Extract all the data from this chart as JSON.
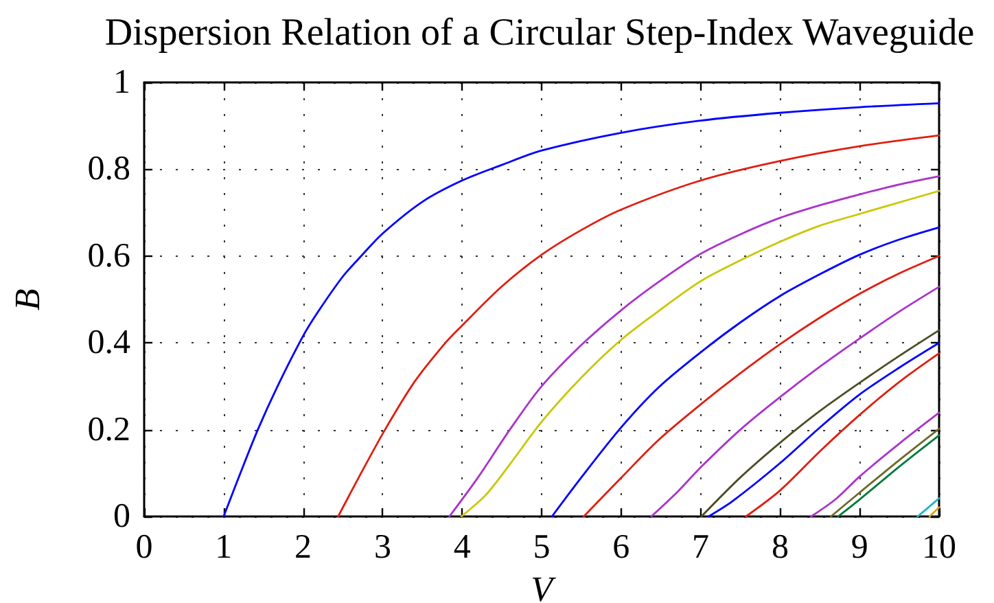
{
  "chart_data": {
    "type": "line",
    "title": "Dispersion Relation of a Circular Step-Index Waveguide",
    "xlabel": "V",
    "ylabel": "B",
    "xlim": [
      0,
      10
    ],
    "xticks": [
      0,
      1,
      2,
      3,
      4,
      5,
      6,
      7,
      8,
      9,
      10
    ],
    "ylim": [
      0,
      1
    ],
    "yticks": [
      0,
      0.2,
      0.4,
      0.6,
      0.8,
      1
    ],
    "grid": true,
    "series": [
      {
        "color": "#0000ff",
        "x": [
          1,
          1.2,
          1.43,
          1.67,
          2,
          2.2,
          2.5,
          2.73,
          3,
          3.5,
          4,
          4.5,
          5,
          6,
          7,
          8,
          9,
          10
        ],
        "values": [
          0,
          0.095,
          0.2,
          0.297,
          0.416,
          0.475,
          0.553,
          0.6,
          0.652,
          0.725,
          0.774,
          0.81,
          0.843,
          0.884,
          0.912,
          0.93,
          0.943,
          0.952
        ]
      },
      {
        "color": "#e01e10",
        "x": [
          2.44,
          2.7,
          3.03,
          3.4,
          3.79,
          4,
          4.5,
          5,
          5.5,
          6,
          7,
          8,
          9,
          10
        ],
        "values": [
          0,
          0.09,
          0.2,
          0.31,
          0.4,
          0.44,
          0.53,
          0.603,
          0.66,
          0.707,
          0.774,
          0.819,
          0.853,
          0.878
        ]
      },
      {
        "color": "#aa33cc",
        "x": [
          3.84,
          4.2,
          4.6,
          5,
          5.5,
          6,
          6.47,
          7,
          7.5,
          8,
          8.5,
          9,
          9.5,
          10
        ],
        "values": [
          0,
          0.09,
          0.2,
          0.3,
          0.395,
          0.475,
          0.54,
          0.605,
          0.65,
          0.688,
          0.717,
          0.742,
          0.765,
          0.784
        ]
      },
      {
        "color": "#c8c800",
        "x": [
          3.99,
          4.3,
          4.6,
          5,
          5.5,
          6,
          6.47,
          7,
          7.5,
          8,
          8.5,
          9,
          9.3,
          10
        ],
        "values": [
          0,
          0.05,
          0.12,
          0.218,
          0.32,
          0.407,
          0.473,
          0.542,
          0.59,
          0.633,
          0.67,
          0.697,
          0.713,
          0.75
        ]
      },
      {
        "color": "#0000ff",
        "x": [
          5.13,
          5.5,
          6,
          6.47,
          7,
          7.5,
          8,
          8.5,
          9,
          9.5,
          10
        ],
        "values": [
          0,
          0.09,
          0.205,
          0.297,
          0.378,
          0.447,
          0.508,
          0.558,
          0.603,
          0.638,
          0.666
        ]
      },
      {
        "color": "#e01e10",
        "x": [
          5.53,
          6,
          6.47,
          7,
          7.5,
          8,
          8.5,
          9,
          9.5,
          10
        ],
        "values": [
          0,
          0.089,
          0.176,
          0.258,
          0.33,
          0.397,
          0.458,
          0.513,
          0.56,
          0.6
        ]
      },
      {
        "color": "#aa33cc",
        "x": [
          6.38,
          6.7,
          7,
          7.5,
          8,
          8.5,
          9,
          9.5,
          10
        ],
        "values": [
          0,
          0.055,
          0.113,
          0.2,
          0.275,
          0.345,
          0.41,
          0.472,
          0.529
        ]
      },
      {
        "color": "#4d4d26",
        "x": [
          7.01,
          7.5,
          8,
          8.5,
          9,
          9.5,
          10
        ],
        "values": [
          0,
          0.09,
          0.17,
          0.243,
          0.308,
          0.37,
          0.429
        ]
      },
      {
        "color": "#0000ff",
        "x": [
          7.1,
          7.4,
          8,
          8.5,
          9,
          9.5,
          10
        ],
        "values": [
          0,
          0.035,
          0.123,
          0.205,
          0.281,
          0.343,
          0.4
        ]
      },
      {
        "color": "#e01e10",
        "x": [
          7.57,
          8,
          8.5,
          9,
          9.5,
          10
        ],
        "values": [
          0,
          0.06,
          0.15,
          0.234,
          0.31,
          0.376
        ]
      },
      {
        "color": "#aa33cc",
        "x": [
          8.39,
          8.7,
          9,
          9.5,
          10
        ],
        "values": [
          0,
          0.04,
          0.092,
          0.168,
          0.239
        ]
      },
      {
        "color": "#6b6b2a",
        "x": [
          8.64,
          9,
          9.5,
          10
        ],
        "values": [
          0,
          0.055,
          0.13,
          0.202
        ]
      },
      {
        "color": "#007a3d",
        "x": [
          8.73,
          9,
          9.5,
          10
        ],
        "values": [
          0,
          0.039,
          0.115,
          0.187
        ]
      },
      {
        "color": "#1fb5c0",
        "x": [
          9.73,
          9.86,
          10
        ],
        "values": [
          0,
          0.02,
          0.042
        ]
      },
      {
        "color": "#d9a020",
        "x": [
          9.88,
          10
        ],
        "values": [
          0,
          0.021
        ]
      }
    ]
  }
}
